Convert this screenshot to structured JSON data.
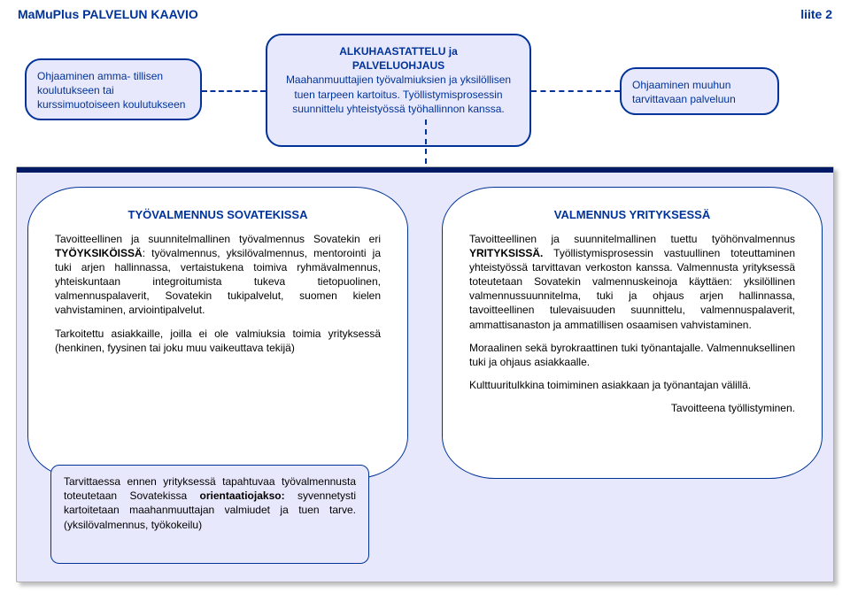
{
  "header": {
    "title": "MaMuPlus PALVELUN KAAVIO",
    "right": "liite 2"
  },
  "topLeft": {
    "text": "Ohjaaminen amma-\ntillisen koulutukseen tai kurssimuotoiseen koulutukseen"
  },
  "topCenter": {
    "l1": "ALKUHAASTATTELU ja",
    "l2": "PALVELUOHJAUS",
    "l3": "Maahanmuuttajien työvalmiuksien ja yksilöllisen tuen tarpeen kartoitus. Työllistymisprosessin suunnittelu yhteistyössä työhallinnon kanssa."
  },
  "topRight": {
    "text": "Ohjaaminen muuhun tarvittavaan palveluun"
  },
  "panelLeft": {
    "title": "TYÖVALMENNUS SOVATEKISSA",
    "p1a": "Tavoitteellinen ja suunnitelmallinen työvalmennus Sovatekin eri ",
    "p1b": "TYÖYKSIKÖISSÄ",
    "p1c": ": työvalmennus, yksilövalmennus, mentorointi ja tuki arjen hallinnassa, vertaistukena toimiva ryhmävalmennus, yhteiskuntaan integroitumista tukeva tietopuolinen, valmennuspalaverit, Sovatekin tukipalvelut, suomen kielen vahvistaminen, arviointipalvelut.",
    "p2": "Tarkoitettu asiakkaille, joilla ei ole valmiuksia toimia yrityksessä (henkinen, fyysinen tai joku muu vaikeuttava tekijä)"
  },
  "subBox": {
    "a": "Tarvittaessa ennen yrityksessä tapahtuvaa työvalmennusta toteutetaan Sovatekissa ",
    "b": "orientaatiojakso:",
    "c": " syvennetysti kartoitetaan maahanmuuttajan valmiudet ja tuen tarve. (yksilövalmennus, työkokeilu)"
  },
  "panelRight": {
    "title": "VALMENNUS YRITYKSESSÄ",
    "p1a": "Tavoitteellinen ja suunnitelmallinen tuettu työhönvalmennus ",
    "p1b": "YRITYKSISSÄ.",
    "p1c": " Työllistymisprosessin vastuullinen toteuttaminen yhteistyössä tarvittavan verkoston kanssa. Valmennusta yrityksessä toteutetaan Sovatekin valmennuskeinoja käyttäen: yksilöllinen valmennussuunnitelma, tuki ja ohjaus arjen hallinnassa, tavoitteellinen tulevaisuuden suunnittelu, valmennuspalaverit, ammattisanaston ja ammatillisen osaamisen vahvistaminen.",
    "p2": "Moraalinen sekä byrokraattinen tuki työnantajalle. Valmennuksellinen tuki ja ohjaus asiakkaalle.",
    "p3": "Kulttuuritulkkina toimiminen asiakkaan ja työnantajan välillä.",
    "p4": "Tavoitteena työllistyminen."
  },
  "colors": {
    "accent": "#003399",
    "panelBg": "#e8e8fc",
    "text": "#000000",
    "white": "#ffffff"
  }
}
